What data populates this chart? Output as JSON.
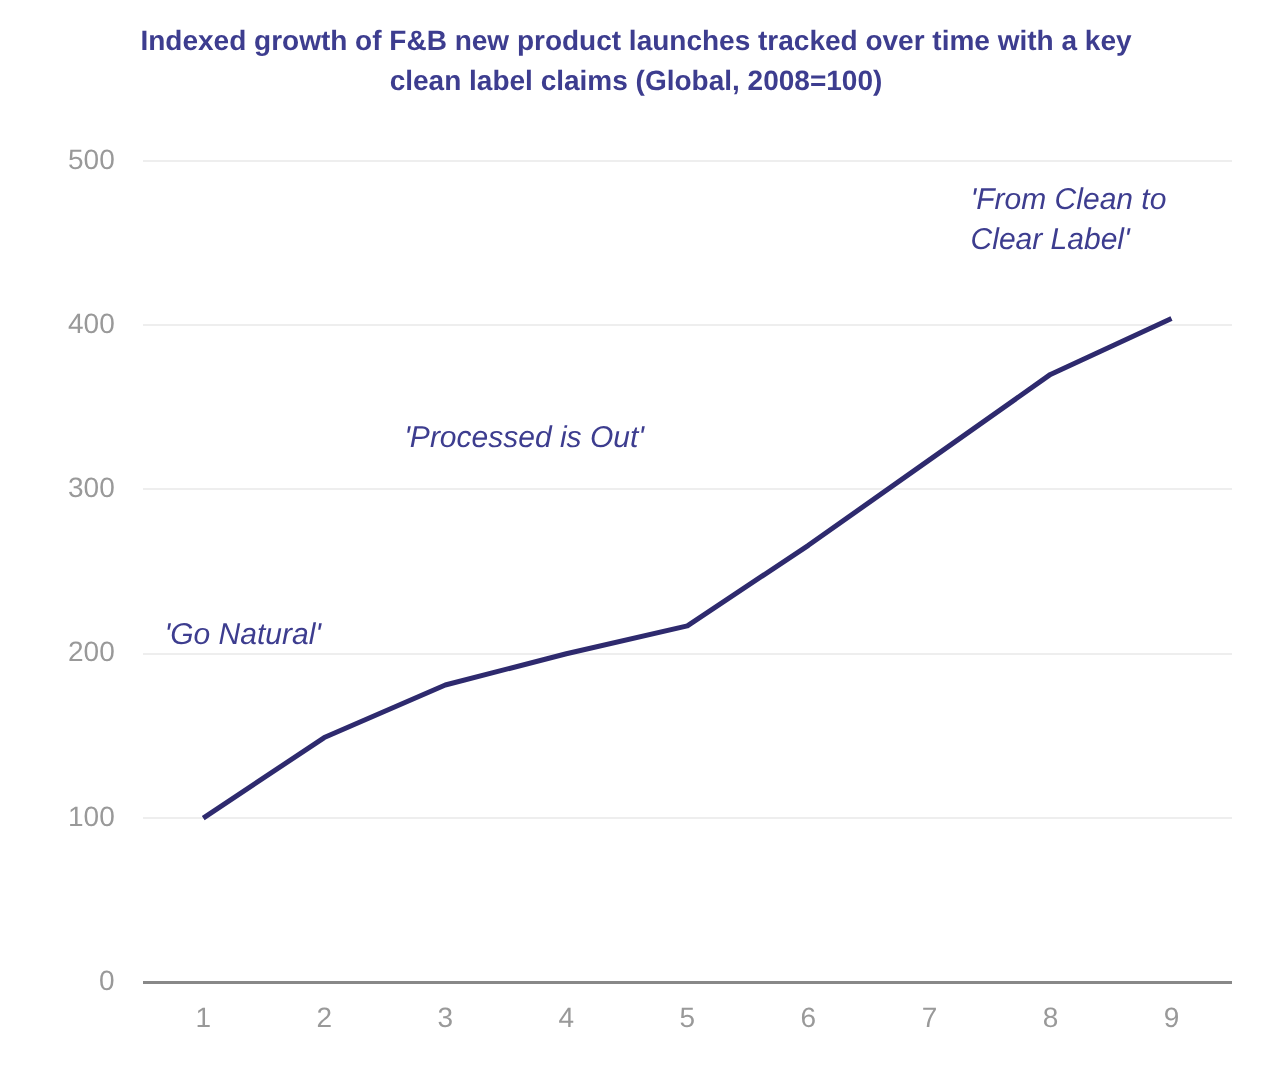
{
  "chart_data": {
    "type": "line",
    "title": "Indexed growth of F&B new product launches tracked over time with a key clean label claims (Global, 2008=100)",
    "categories": [
      "1",
      "2",
      "3",
      "4",
      "5",
      "6",
      "7",
      "8",
      "9"
    ],
    "series": [
      {
        "color": "#2e2a6e",
        "values": [
          100,
          149,
          181,
          200,
          217,
          266,
          318,
          370,
          404
        ]
      }
    ],
    "ylim": [
      0,
      500
    ],
    "yticks": [
      0,
      100,
      200,
      300,
      400,
      500
    ],
    "grid": "y",
    "legend": false,
    "marker": "none",
    "annotations": [
      "'Go Natural'",
      "'Processed is Out'",
      "'From Clean to Clear Label'"
    ]
  }
}
